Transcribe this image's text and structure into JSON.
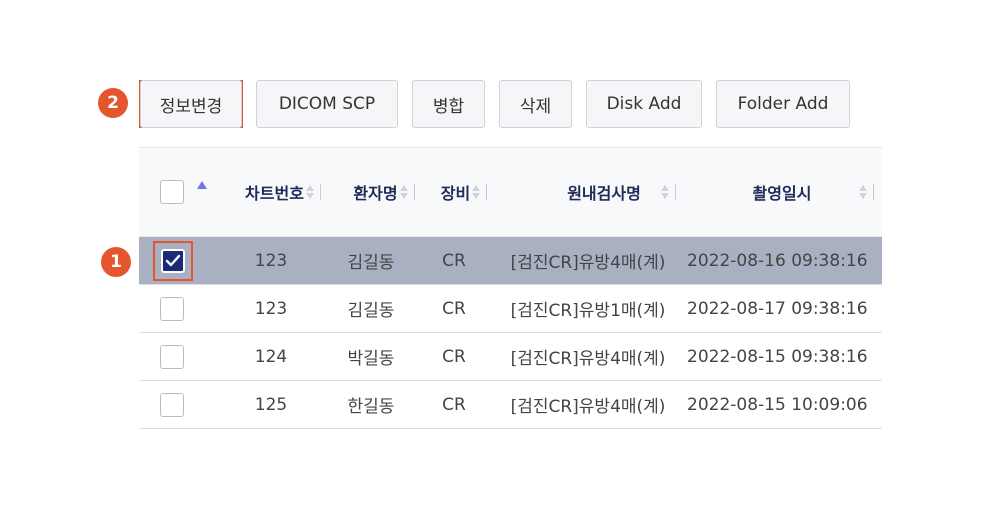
{
  "annotations": {
    "badge_1": "1",
    "badge_2": "2"
  },
  "toolbar": {
    "buttons": [
      "정보변경",
      "DICOM SCP",
      "병합",
      "삭제",
      "Disk Add",
      "Folder Add"
    ]
  },
  "table": {
    "headers": {
      "chart_no": "차트번호",
      "patient": "환자명",
      "equipment": "장비",
      "exam": "원내검사명",
      "date": "촬영일시"
    },
    "rows": [
      {
        "selected": true,
        "chart_no": "123",
        "patient": "김길동",
        "equipment": "CR",
        "exam": "[검진CR]유방4매(계)",
        "date": "2022-08-16 09:38:16"
      },
      {
        "selected": false,
        "chart_no": "123",
        "patient": "김길동",
        "equipment": "CR",
        "exam": "[검진CR]유방1매(계)",
        "date": "2022-08-17 09:38:16"
      },
      {
        "selected": false,
        "chart_no": "124",
        "patient": "박길동",
        "equipment": "CR",
        "exam": "[검진CR]유방4매(계)",
        "date": "2022-08-15 09:38:16"
      },
      {
        "selected": false,
        "chart_no": "125",
        "patient": "한길동",
        "equipment": "CR",
        "exam": "[검진CR]유방4매(계)",
        "date": "2022-08-15 10:09:06"
      }
    ]
  },
  "colors": {
    "annotation": "#e4572e",
    "header_text": "#1f2a56",
    "selected_row": "#a9b0c2",
    "checkbox_checked": "#1b2a78"
  }
}
